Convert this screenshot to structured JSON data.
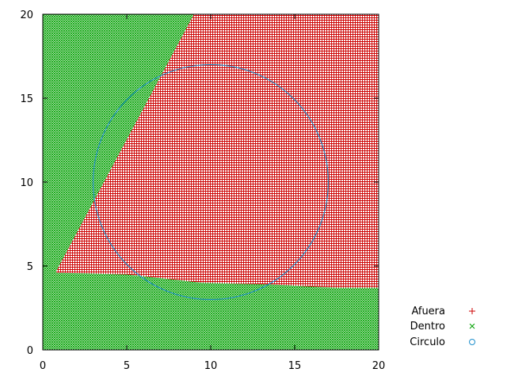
{
  "chart_data": {
    "type": "scatter",
    "title": "",
    "xlabel": "",
    "ylabel": "",
    "xlim": [
      0,
      20
    ],
    "ylim": [
      0,
      20
    ],
    "x_ticks": [
      "0",
      "5",
      "10",
      "15",
      "20"
    ],
    "y_ticks": [
      "0",
      "5",
      "10",
      "15",
      "20"
    ],
    "grid": false,
    "legend_position": "bottom-right-outside",
    "series": [
      {
        "name": "Afuera",
        "marker": "plus",
        "color": "#cc0000",
        "region_note": "points outside the dividing boundary",
        "boundary_line": [
          [
            0.8,
            4.7
          ],
          [
            9.0,
            20.0
          ]
        ],
        "bottom_edge": [
          [
            0.8,
            4.6
          ],
          [
            5.0,
            4.5
          ],
          [
            9.5,
            4.0
          ],
          [
            13.5,
            3.9
          ],
          [
            17.5,
            3.7
          ],
          [
            20.0,
            3.7
          ]
        ]
      },
      {
        "name": "Dentro",
        "marker": "x",
        "color": "#00a000",
        "region_note": "remaining grid points"
      },
      {
        "name": "Circulo",
        "marker": "circle",
        "color": "#1f8fcc",
        "center": [
          10.0,
          10.0
        ],
        "radius_x": 7.0,
        "radius_y": 7.0
      }
    ]
  }
}
